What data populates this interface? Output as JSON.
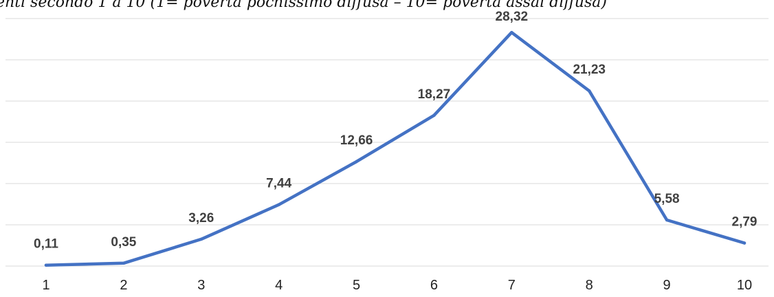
{
  "chart_data": {
    "type": "line",
    "title": "enti secondo 1 a 10 (1= povertà pochissimo diffusa – 10= povertà assai diffusa)",
    "categories": [
      "1",
      "2",
      "3",
      "4",
      "5",
      "6",
      "7",
      "8",
      "9",
      "10"
    ],
    "series": [
      {
        "values": [
          0.11,
          0.35,
          3.26,
          7.44,
          12.66,
          18.27,
          28.32,
          21.23,
          5.58,
          2.79
        ],
        "labels": [
          "0,11",
          "0,35",
          "3,26",
          "7,44",
          "12,66",
          "18,27",
          "28,32",
          "21,23",
          "5,58",
          "2,79"
        ]
      }
    ],
    "ylim": [
      0,
      30
    ],
    "grid": true,
    "legend": "none",
    "colors": {
      "series": "#4472c4",
      "grid": "#d9d9d9"
    }
  }
}
